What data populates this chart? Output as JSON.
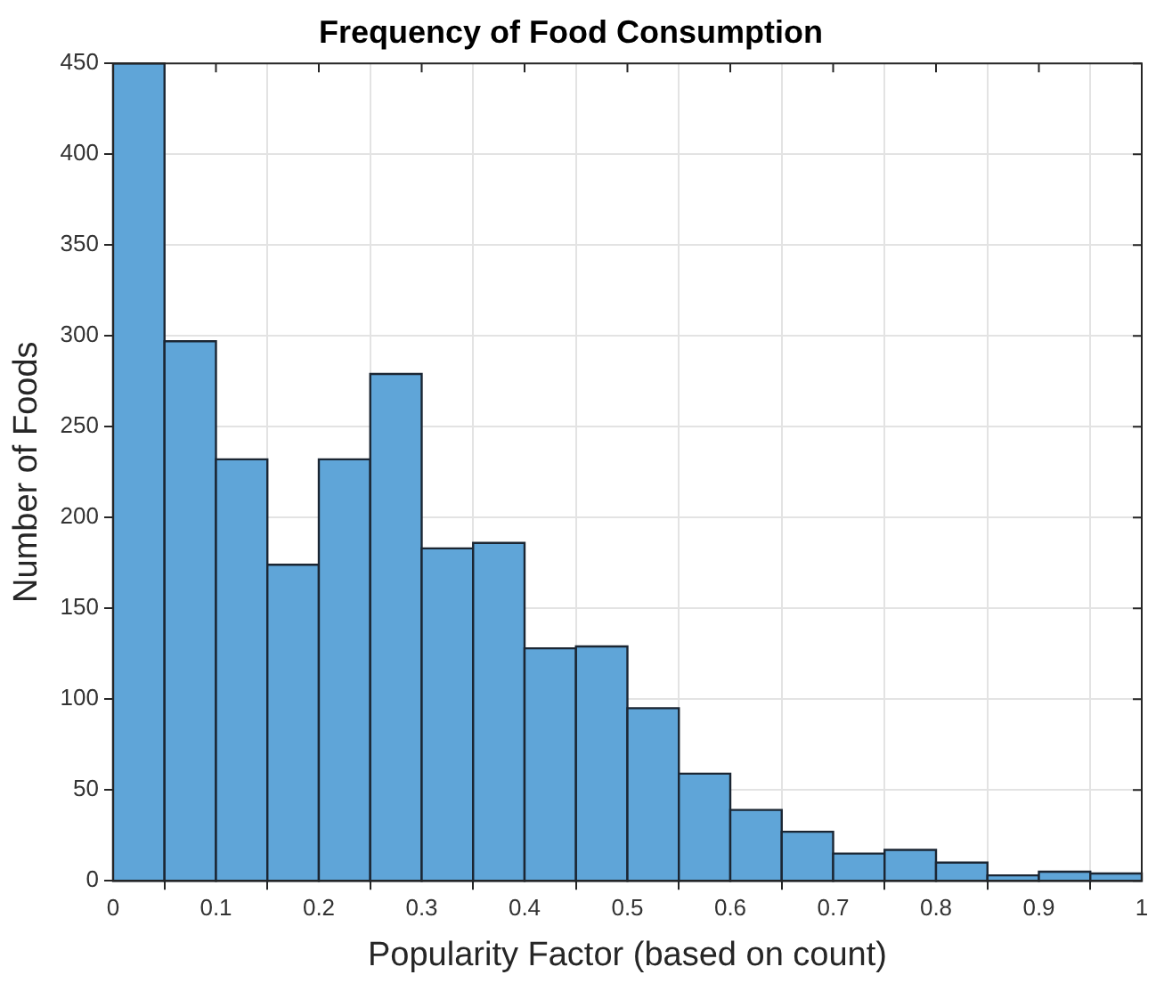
{
  "chart_data": {
    "type": "histogram",
    "title": "Frequency of Food Consumption",
    "xlabel": "Popularity Factor (based on count)",
    "ylabel": "Number of Foods",
    "bins": [
      0,
      0.05,
      0.1,
      0.15,
      0.2,
      0.25,
      0.3,
      0.35,
      0.4,
      0.45,
      0.5,
      0.55,
      0.6,
      0.65,
      0.7,
      0.75,
      0.8,
      0.85,
      0.9,
      0.95,
      1
    ],
    "values": [
      450,
      297,
      232,
      174,
      232,
      279,
      183,
      186,
      128,
      129,
      95,
      59,
      39,
      27,
      15,
      17,
      10,
      3,
      5,
      4
    ],
    "color": "#5fa5d8",
    "xlim": [
      0,
      1
    ],
    "xticks": [
      0,
      0.1,
      0.2,
      0.3,
      0.4,
      0.5,
      0.6,
      0.7,
      0.8,
      0.9,
      1
    ],
    "ylim": [
      0,
      450
    ],
    "yticks": [
      0,
      50,
      100,
      150,
      200,
      250,
      300,
      350,
      400,
      450
    ],
    "grid": true
  }
}
